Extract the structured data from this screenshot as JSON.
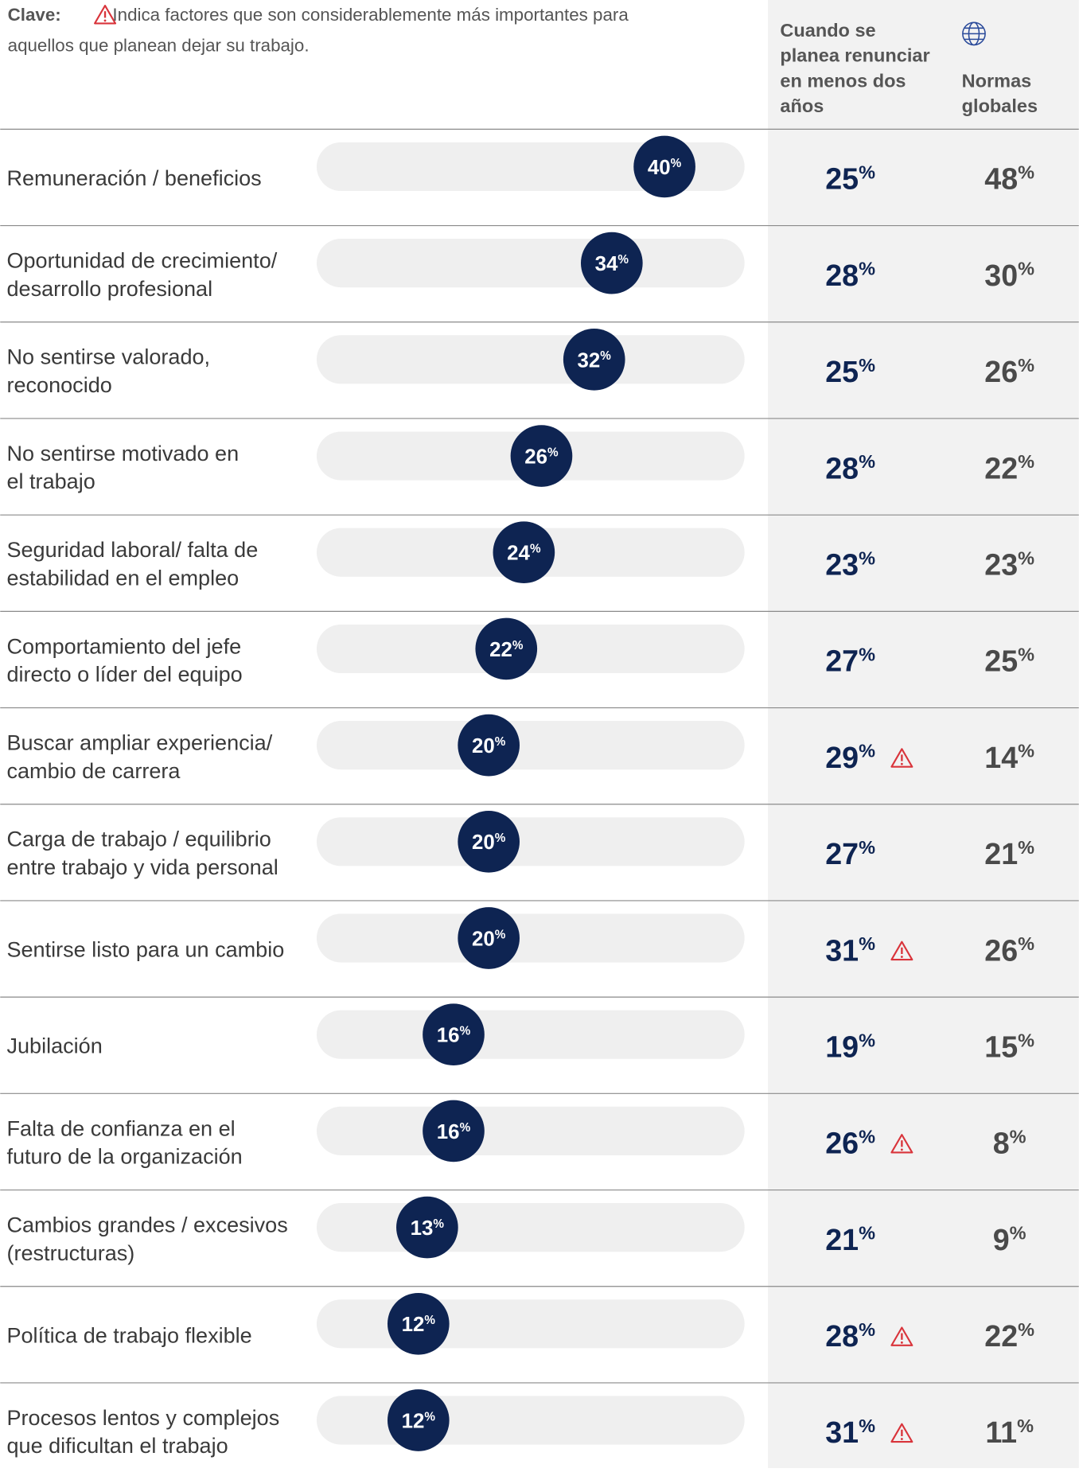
{
  "chart_data": {
    "type": "bar",
    "key": {
      "label": "Clave:",
      "lines": [
        "Indica factores que son considerablemente más importantes para",
        "aquellos que planean dejar su trabajo."
      ]
    },
    "columns": [
      [
        "Cuando se",
        "planea renunciar",
        "en menos dos",
        "años"
      ],
      [
        "Normas",
        "globales"
      ]
    ],
    "unit": "%",
    "categories": [
      [
        "Remuneración / beneficios"
      ],
      [
        "Oportunidad de crecimiento/",
        "desarrollo profesional"
      ],
      [
        "No sentirse valorado,",
        "reconocido"
      ],
      [
        "No sentirse motivado en",
        "el trabajo"
      ],
      [
        "Seguridad laboral/ falta de",
        "estabilidad en el empleo"
      ],
      [
        "Comportamiento del jefe",
        "directo o líder del equipo"
      ],
      [
        "Buscar ampliar experiencia/",
        "cambio de carrera"
      ],
      [
        "Carga de trabajo / equilibrio",
        "entre trabajo y vida personal"
      ],
      [
        "Sentirse listo para un cambio"
      ],
      [
        "Jubilación"
      ],
      [
        "Falta de confianza en el",
        "futuro de la organización"
      ],
      [
        "Cambios grandes / excesivos",
        "(restructuras)"
      ],
      [
        "Política de trabajo flexible"
      ],
      [
        "Procesos lentos y complejos",
        "que dificultan el trabajo"
      ]
    ],
    "values": [
      40,
      34,
      32,
      26,
      24,
      22,
      20,
      20,
      20,
      16,
      16,
      13,
      12,
      12
    ],
    "plan_quit": [
      25,
      28,
      25,
      28,
      23,
      27,
      29,
      27,
      31,
      19,
      26,
      21,
      28,
      31
    ],
    "global_norms": [
      48,
      30,
      26,
      22,
      23,
      25,
      14,
      21,
      26,
      15,
      8,
      9,
      22,
      11
    ],
    "flag": [
      false,
      false,
      false,
      false,
      false,
      false,
      true,
      false,
      true,
      false,
      true,
      false,
      true,
      true
    ],
    "xlim": [
      0,
      49
    ],
    "color": "#0e2452"
  }
}
